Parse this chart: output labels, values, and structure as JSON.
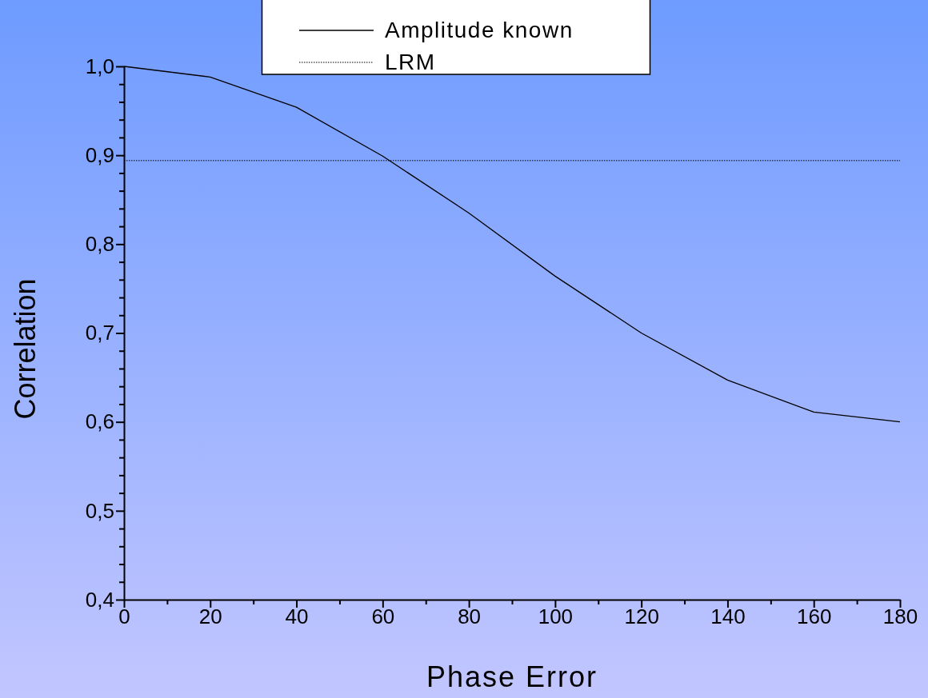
{
  "chart_data": {
    "type": "line",
    "xlabel": "Phase Error",
    "ylabel": "Correlation",
    "xlim": [
      0,
      180
    ],
    "ylim": [
      0.4,
      1.0
    ],
    "xticks": [
      0,
      {
        "value": 10,
        "label": null
      },
      20,
      {
        "value": 30,
        "label": null
      },
      40,
      {
        "value": 50,
        "label": null
      },
      60,
      {
        "value": 70,
        "label": null
      },
      80,
      {
        "value": 90,
        "label": null
      },
      100,
      {
        "value": 110,
        "label": null
      },
      120,
      {
        "value": 130,
        "label": null
      },
      140,
      {
        "value": 150,
        "label": null
      },
      160,
      {
        "value": 170,
        "label": null
      },
      180
    ],
    "yticks": [
      {
        "value": 0.4,
        "label": "0,4"
      },
      {
        "value": 0.42,
        "label": null
      },
      {
        "value": 0.44,
        "label": null
      },
      {
        "value": 0.46,
        "label": null
      },
      {
        "value": 0.48,
        "label": null
      },
      {
        "value": 0.5,
        "label": "0,5"
      },
      {
        "value": 0.52,
        "label": null
      },
      {
        "value": 0.54,
        "label": null
      },
      {
        "value": 0.56,
        "label": null
      },
      {
        "value": 0.58,
        "label": null
      },
      {
        "value": 0.6,
        "label": "0,6"
      },
      {
        "value": 0.62,
        "label": null
      },
      {
        "value": 0.64,
        "label": null
      },
      {
        "value": 0.66,
        "label": null
      },
      {
        "value": 0.68,
        "label": null
      },
      {
        "value": 0.7,
        "label": "0,7"
      },
      {
        "value": 0.72,
        "label": null
      },
      {
        "value": 0.74,
        "label": null
      },
      {
        "value": 0.76,
        "label": null
      },
      {
        "value": 0.78,
        "label": null
      },
      {
        "value": 0.8,
        "label": "0,8"
      },
      {
        "value": 0.82,
        "label": null
      },
      {
        "value": 0.84,
        "label": null
      },
      {
        "value": 0.86,
        "label": null
      },
      {
        "value": 0.88,
        "label": null
      },
      {
        "value": 0.9,
        "label": "0,9"
      },
      {
        "value": 0.92,
        "label": null
      },
      {
        "value": 0.94,
        "label": null
      },
      {
        "value": 0.96,
        "label": null
      },
      {
        "value": 0.98,
        "label": null
      },
      {
        "value": 1.0,
        "label": "1,0"
      }
    ],
    "grid": false,
    "legend": "top",
    "marker": "none",
    "series": [
      {
        "name": "Amplitude known",
        "color": "#000000",
        "line_style": "solid",
        "x": [
          0,
          20,
          40,
          60,
          80,
          100,
          120,
          140,
          160,
          180
        ],
        "values": [
          1.0,
          0.988,
          0.954,
          0.899,
          0.835,
          0.764,
          0.7,
          0.647,
          0.611,
          0.6
        ]
      },
      {
        "name": "LRM",
        "color": "#000000",
        "line_style": "dotted",
        "x": [
          0,
          180
        ],
        "values": [
          0.894,
          0.894
        ]
      }
    ]
  }
}
